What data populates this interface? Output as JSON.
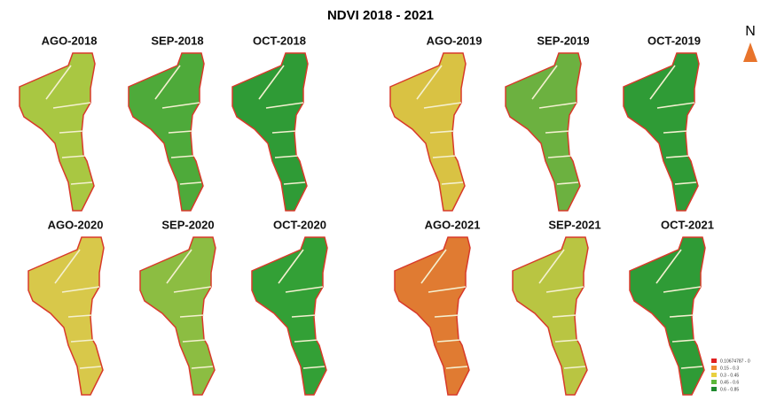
{
  "title": "NDVI 2018 - 2021",
  "north": "N",
  "panels": [
    {
      "label": "AGO-2018",
      "color": "#a9c742"
    },
    {
      "label": "SEP-2018",
      "color": "#4eaa3a"
    },
    {
      "label": "OCT-2018",
      "color": "#2f9b36"
    },
    {
      "label": "AGO-2019",
      "color": "#d9c243"
    },
    {
      "label": "SEP-2019",
      "color": "#6cb140"
    },
    {
      "label": "OCT-2019",
      "color": "#2f9b36"
    },
    {
      "label": "AGO-2020",
      "color": "#d8c84a"
    },
    {
      "label": "SEP-2020",
      "color": "#8cbd42"
    },
    {
      "label": "OCT-2020",
      "color": "#33a036"
    },
    {
      "label": "AGO-2021",
      "color": "#e07b32"
    },
    {
      "label": "SEP-2021",
      "color": "#b9c542"
    },
    {
      "label": "OCT-2021",
      "color": "#2f9b36"
    }
  ],
  "legend": [
    {
      "label": "0.10674787 - 0",
      "color": "#e02020"
    },
    {
      "label": "0.15 - 0.3",
      "color": "#f08a30"
    },
    {
      "label": "0.3 - 0.45",
      "color": "#e8d040"
    },
    {
      "label": "0.45 - 0.6",
      "color": "#5cb83a"
    },
    {
      "label": "0.6 - 0.85",
      "color": "#1f8a2e"
    }
  ]
}
